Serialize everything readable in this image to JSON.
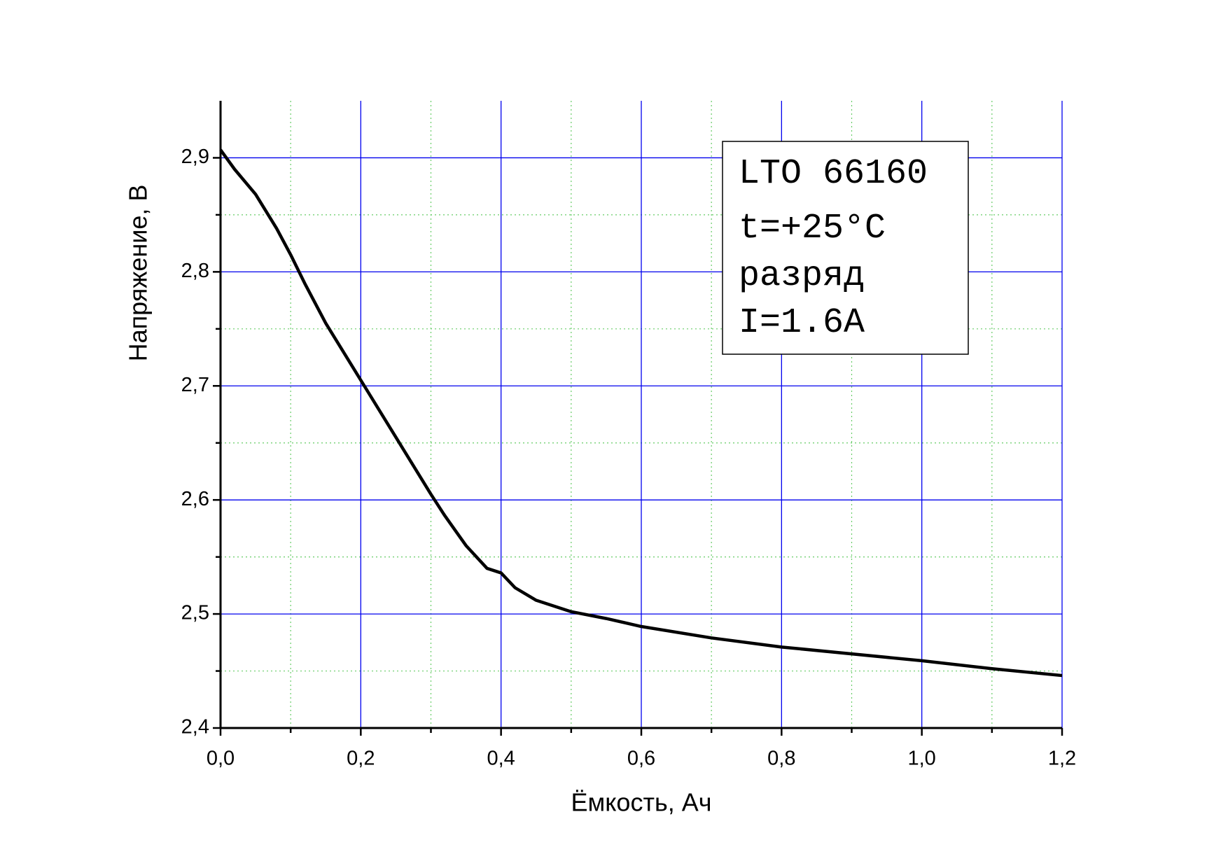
{
  "chart_data": {
    "type": "line",
    "x_label": "Ёмкость, Ач",
    "y_label": "Напряжение, В",
    "annotations": [
      "LTO 66160",
      "t=+25°C",
      "разряд",
      "I=1.6A"
    ],
    "xlim": [
      0,
      1.2
    ],
    "ylim": [
      2.4,
      2.95
    ],
    "xticks": [
      {
        "value": 0,
        "label": "0,0"
      },
      {
        "value": 0.2,
        "label": "0,2"
      },
      {
        "value": 0.4,
        "label": "0,4"
      },
      {
        "value": 0.6,
        "label": "0,6"
      },
      {
        "value": 0.8,
        "label": "0,8"
      },
      {
        "value": 1.0,
        "label": "1,0"
      },
      {
        "value": 1.2,
        "label": "1,2"
      }
    ],
    "yticks": [
      {
        "value": 2.4,
        "label": "2,4"
      },
      {
        "value": 2.5,
        "label": "2,5"
      },
      {
        "value": 2.6,
        "label": "2,6"
      },
      {
        "value": 2.7,
        "label": "2,7"
      },
      {
        "value": 2.8,
        "label": "2,8"
      },
      {
        "value": 2.9,
        "label": "2,9"
      }
    ],
    "minor_xticks": [
      0.1,
      0.3,
      0.5,
      0.7,
      0.9,
      1.1
    ],
    "minor_yticks": [
      2.45,
      2.55,
      2.65,
      2.75,
      2.85
    ],
    "grid": true,
    "grid_color": "#0000ee",
    "minor_grid_color": "#66cc66",
    "series": [
      {
        "color": "#000000",
        "x": [
          0,
          0.02,
          0.05,
          0.08,
          0.1,
          0.12,
          0.15,
          0.18,
          0.2,
          0.25,
          0.3,
          0.32,
          0.35,
          0.38,
          0.4,
          0.42,
          0.45,
          0.5,
          0.55,
          0.6,
          0.7,
          0.8,
          0.9,
          1.0,
          1.1,
          1.2
        ],
        "values": [
          2.907,
          2.89,
          2.868,
          2.838,
          2.815,
          2.79,
          2.755,
          2.725,
          2.705,
          2.655,
          2.605,
          2.586,
          2.56,
          2.54,
          2.536,
          2.523,
          2.512,
          2.502,
          2.496,
          2.489,
          2.479,
          2.471,
          2.465,
          2.459,
          2.452,
          2.446
        ]
      }
    ]
  }
}
